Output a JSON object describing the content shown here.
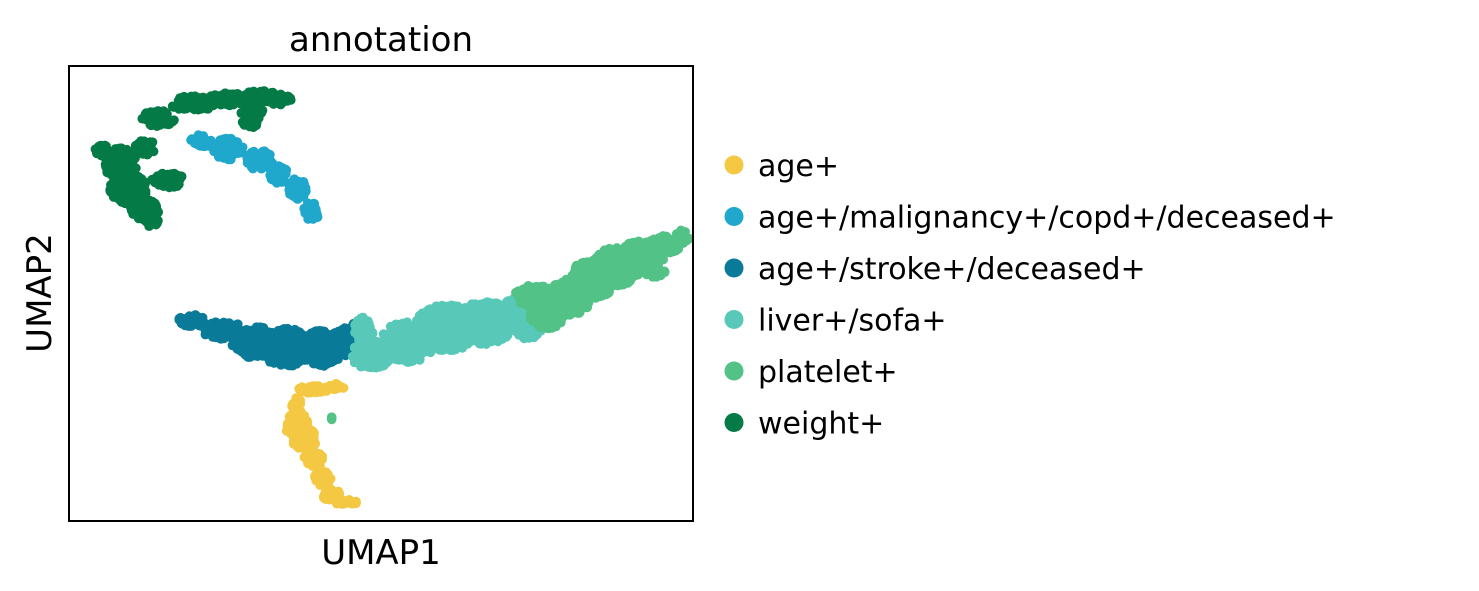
{
  "chart_data": {
    "type": "scatter",
    "title": "annotation",
    "xlabel": "UMAP1",
    "ylabel": "UMAP2",
    "xlim": [
      0,
      100
    ],
    "ylim": [
      0,
      100
    ],
    "grid": false,
    "ticks_shown": false,
    "legend_placement": "right-outside",
    "series": [
      {
        "name": "age+",
        "color": "#f4c842",
        "shape": [
          [
            36.5,
            25.8,
            0.8,
            2.0
          ],
          [
            36.8,
            22.3,
            1.6,
            2.2
          ],
          [
            37.7,
            18.0,
            2.0,
            2.4
          ],
          [
            39.2,
            13.5,
            1.6,
            2.0
          ],
          [
            40.6,
            9.3,
            1.4,
            1.6
          ],
          [
            42.0,
            5.7,
            1.6,
            1.2
          ],
          [
            44.4,
            4.0,
            2.0,
            0.7
          ],
          [
            39.3,
            28.9,
            2.6,
            1.0
          ],
          [
            42.8,
            29.5,
            1.3,
            0.7
          ],
          [
            35.5,
            20.6,
            0.8,
            1.4
          ]
        ]
      },
      {
        "name": "age+/malignancy+/copd+/deceased+",
        "color": "#1fa7cc",
        "shape": [
          [
            21.3,
            83.5,
            1.8,
            1.4
          ],
          [
            25.5,
            81.8,
            2.4,
            2.4
          ],
          [
            30.6,
            79.3,
            2.1,
            2.2
          ],
          [
            33.6,
            76.1,
            1.4,
            2.2
          ],
          [
            36.6,
            72.9,
            1.4,
            2.4
          ],
          [
            38.6,
            68.6,
            1.1,
            1.8
          ],
          [
            39.0,
            66.9,
            0.9,
            1.2
          ]
        ]
      },
      {
        "name": "age+/stroke+/deceased+",
        "color": "#0a7a99",
        "shape": [
          [
            19.8,
            44.1,
            2.2,
            1.4
          ],
          [
            24.8,
            41.8,
            3.2,
            2.2
          ],
          [
            29.8,
            39.3,
            3.8,
            3.4
          ],
          [
            34.8,
            38.2,
            4.2,
            4.2
          ],
          [
            40.5,
            38.0,
            3.4,
            4.0
          ],
          [
            44.0,
            39.3,
            2.0,
            3.2
          ],
          [
            46.1,
            41.8,
            1.2,
            1.9
          ]
        ]
      },
      {
        "name": "liver+/sofa+",
        "color": "#58c9b9",
        "shape": [
          [
            48.5,
            36.5,
            3.4,
            3.2
          ],
          [
            54.2,
            39.3,
            4.4,
            4.4
          ],
          [
            60.5,
            42.4,
            5.2,
            5.1
          ],
          [
            66.8,
            43.6,
            4.5,
            4.8
          ],
          [
            71.8,
            45.6,
            3.2,
            3.6
          ],
          [
            73.4,
            42.8,
            2.4,
            2.8
          ],
          [
            47.2,
            41.6,
            1.6,
            3.2
          ]
        ]
      },
      {
        "name": "platelet+",
        "color": "#52c287",
        "shape": [
          [
            74.7,
            49.6,
            3.2,
            2.4
          ],
          [
            76.6,
            45.4,
            2.8,
            3.2
          ],
          [
            80.3,
            49.2,
            3.4,
            4.0
          ],
          [
            84.0,
            53.3,
            3.6,
            4.4
          ],
          [
            87.7,
            55.9,
            4.0,
            4.2
          ],
          [
            91.9,
            58.6,
            3.6,
            3.0
          ],
          [
            95.4,
            60.7,
            2.6,
            2.0
          ],
          [
            98.3,
            62.3,
            1.1,
            1.6
          ],
          [
            93.8,
            55.0,
            1.8,
            1.4
          ],
          [
            42.3,
            22.5,
            0.4,
            0.4
          ]
        ]
      },
      {
        "name": "weight+",
        "color": "#047a46",
        "shape": [
          [
            8.3,
            78.4,
            2.6,
            3.6
          ],
          [
            9.5,
            73.1,
            3.0,
            3.5
          ],
          [
            12.2,
            68.4,
            2.4,
            2.2
          ],
          [
            14.3,
            88.5,
            2.6,
            1.8
          ],
          [
            19.8,
            91.7,
            3.4,
            1.7
          ],
          [
            25.5,
            92.8,
            3.2,
            1.5
          ],
          [
            30.6,
            93.3,
            2.8,
            1.3
          ],
          [
            33.8,
            92.6,
            1.8,
            1.2
          ],
          [
            29.4,
            89.7,
            1.8,
            1.4
          ],
          [
            28.9,
            87.5,
            1.2,
            1.4
          ],
          [
            15.9,
            74.9,
            2.6,
            1.6
          ],
          [
            12.2,
            82.1,
            1.8,
            1.6
          ],
          [
            5.4,
            81.5,
            1.2,
            1.3
          ],
          [
            13.3,
            66.0,
            1.2,
            1.4
          ]
        ]
      }
    ]
  }
}
